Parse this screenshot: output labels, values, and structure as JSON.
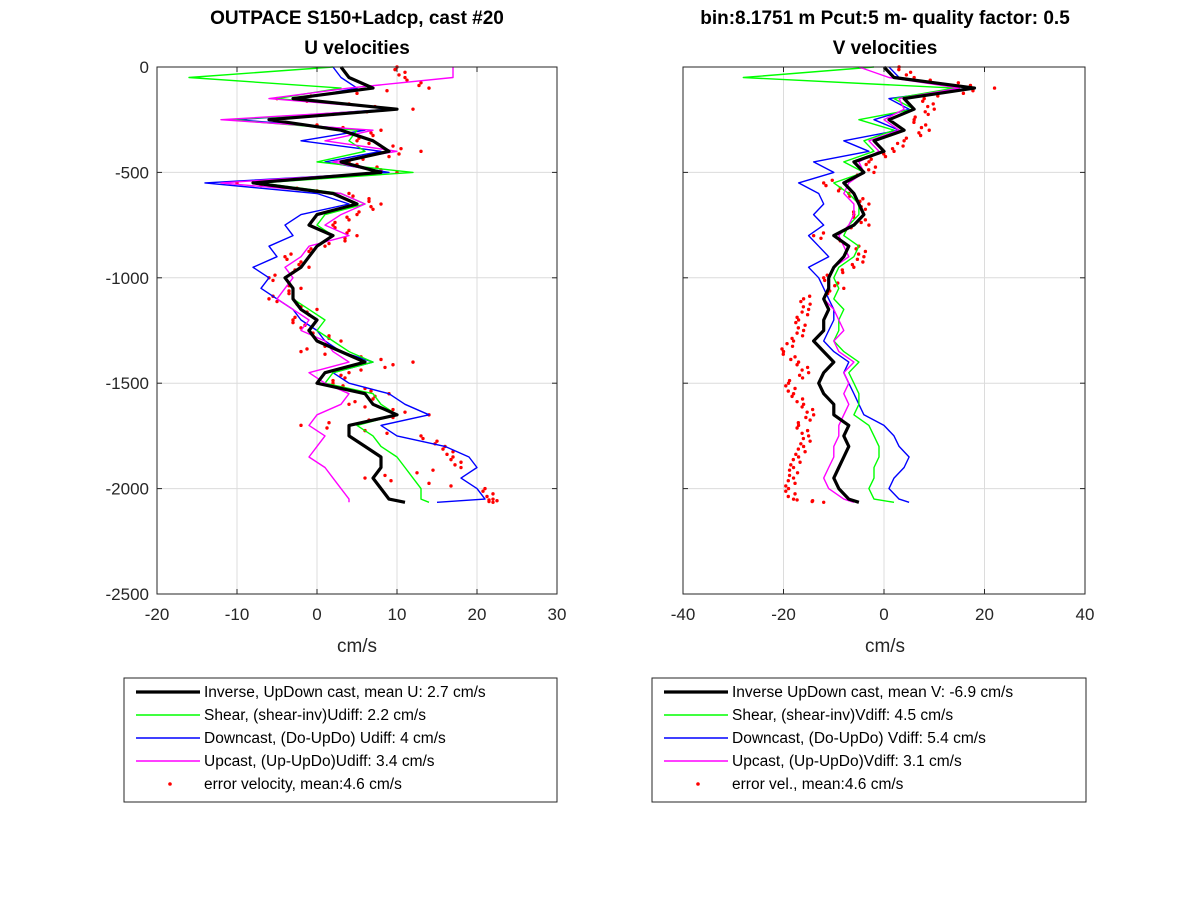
{
  "chart_data": [
    {
      "type": "line",
      "title": "OUTPACE S150+Ladcp, cast #20",
      "subtitle": "U velocities",
      "xlabel": "cm/s",
      "ylabel": "",
      "xlim": [
        -20,
        30
      ],
      "ylim": [
        -2500,
        0
      ],
      "xticks": [
        "-20",
        "-10",
        "0",
        "10",
        "20",
        "30"
      ],
      "yticks": [
        "0",
        "-500",
        "-1000",
        "-1500",
        "-2000",
        "-2500"
      ],
      "xtick_values": [
        -20,
        -10,
        0,
        10,
        20,
        30
      ],
      "ytick_values": [
        0,
        -500,
        -1000,
        -1500,
        -2000,
        -2500
      ],
      "grid": true,
      "legend_position": "below",
      "legend": [
        "Inverse, UpDown cast, mean U:  2.7 cm/s",
        "Shear, (shear-inv)Udiff:  2.2 cm/s",
        "Downcast, (Do-UpDo) Udiff:  4 cm/s",
        "Upcast, (Up-UpDo)Udiff:  3.4 cm/s",
        "error velocity, mean:4.6 cm/s"
      ],
      "depth": [
        0,
        -50,
        -100,
        -150,
        -200,
        -250,
        -300,
        -350,
        -400,
        -450,
        -500,
        -550,
        -600,
        -650,
        -700,
        -750,
        -800,
        -850,
        -900,
        -950,
        -1000,
        -1050,
        -1100,
        -1150,
        -1200,
        -1250,
        -1300,
        -1350,
        -1400,
        -1450,
        -1500,
        -1550,
        -1600,
        -1650,
        -1700,
        -1750,
        -1800,
        -1850,
        -1900,
        -1950,
        -2000,
        -2050,
        -2065
      ],
      "series": [
        {
          "key": "inverse",
          "color": "#000000",
          "width": 3.2,
          "style": "line",
          "values": [
            3,
            4,
            7,
            -3,
            10,
            -6,
            3,
            7,
            9,
            3,
            8,
            -8,
            2,
            5,
            0,
            -1,
            2,
            0,
            -1,
            -2,
            -4,
            -3,
            -3,
            -2,
            0,
            -1,
            0,
            3,
            6,
            1,
            0,
            6,
            7,
            10,
            4,
            4,
            6,
            8,
            8,
            7,
            8,
            9,
            11
          ]
        },
        {
          "key": "shear",
          "color": "#00ff00",
          "width": 1.4,
          "style": "line",
          "values": [
            2,
            -16,
            3,
            -5,
            10,
            -11,
            5,
            4,
            6,
            0,
            12,
            -7,
            3,
            6,
            1,
            0,
            2,
            0,
            -1,
            -2,
            -4,
            -3,
            -3,
            -1,
            1,
            0,
            2,
            4,
            7,
            2,
            1,
            7,
            8,
            10,
            5,
            7,
            8,
            10,
            11,
            12,
            13,
            13,
            14
          ]
        },
        {
          "key": "downcast",
          "color": "#0000ff",
          "width": 1.4,
          "style": "line",
          "values": [
            2,
            3,
            5,
            -2,
            9,
            -10,
            6,
            -2,
            8,
            1,
            9,
            -14,
            0,
            4,
            -2,
            -4,
            -3,
            -6,
            -5,
            -8,
            -6,
            -7,
            -5,
            -3,
            -2,
            0,
            1,
            3,
            7,
            2,
            4,
            9,
            11,
            14,
            8,
            10,
            16,
            19,
            20,
            18,
            20,
            21,
            15
          ]
        },
        {
          "key": "upcast",
          "color": "#ff00ff",
          "width": 1.4,
          "style": "line",
          "values": [
            17,
            17,
            4,
            -6,
            10,
            -12,
            7,
            1,
            10,
            2,
            8,
            -12,
            3,
            6,
            3,
            1,
            4,
            -1,
            -2,
            -4,
            -3,
            -4,
            -5,
            -3,
            -1,
            -2,
            1,
            2,
            4,
            -1,
            1,
            4,
            3,
            0,
            -1,
            1,
            0,
            -1,
            1,
            2,
            3,
            4,
            4
          ]
        },
        {
          "key": "error",
          "color": "#ff0000",
          "style": "points",
          "values": [
            10,
            11,
            14,
            -5,
            12,
            -9,
            8,
            5,
            13,
            4,
            10,
            -10,
            4,
            8,
            5,
            2,
            5,
            1,
            -4,
            -1,
            -6,
            -2,
            -6,
            0,
            -3,
            -1,
            3,
            -2,
            12,
            4,
            2,
            9,
            4,
            14,
            -2,
            13,
            16,
            17,
            18,
            6,
            21,
            22,
            22
          ]
        }
      ]
    },
    {
      "type": "line",
      "title": "bin:8.1751 m  Pcut:5 m- quality factor:  0.5",
      "subtitle": "V velocities",
      "xlabel": "cm/s",
      "ylabel": "",
      "xlim": [
        -40,
        40
      ],
      "ylim": [
        -2500,
        0
      ],
      "xticks": [
        "-40",
        "-20",
        "0",
        "20",
        "40"
      ],
      "xtick_values": [
        -40,
        -20,
        0,
        20,
        40
      ],
      "ytick_values": [
        0,
        -500,
        -1000,
        -1500,
        -2000,
        -2500
      ],
      "grid": true,
      "legend_position": "below",
      "legend": [
        "Inverse UpDown cast, mean V:  -6.9 cm/s",
        "Shear, (shear-inv)Vdiff:  4.5 cm/s",
        "Downcast, (Do-UpDo) Vdiff:  5.4 cm/s",
        "Upcast, (Up-UpDo)Vdiff:  3.1 cm/s",
        "error vel., mean:4.6 cm/s"
      ],
      "depth": [
        0,
        -50,
        -100,
        -150,
        -200,
        -250,
        -300,
        -350,
        -400,
        -450,
        -500,
        -550,
        -600,
        -650,
        -700,
        -750,
        -800,
        -850,
        -900,
        -950,
        -1000,
        -1050,
        -1100,
        -1150,
        -1200,
        -1250,
        -1300,
        -1350,
        -1400,
        -1450,
        -1500,
        -1550,
        -1600,
        -1650,
        -1700,
        -1750,
        -1800,
        -1850,
        -1900,
        -1950,
        -2000,
        -2050,
        -2065
      ],
      "series": [
        {
          "key": "inverse",
          "color": "#000000",
          "width": 3.2,
          "style": "line",
          "values": [
            0,
            2,
            18,
            4,
            6,
            1,
            4,
            -2,
            0,
            -6,
            -4,
            -8,
            -6,
            -5,
            -4,
            -6,
            -10,
            -7,
            -8,
            -10,
            -11,
            -11,
            -12,
            -11,
            -12,
            -12,
            -14,
            -12,
            -10,
            -12,
            -13,
            -12,
            -10,
            -10,
            -7,
            -8,
            -7,
            -8,
            -9,
            -10,
            -9,
            -7,
            -5
          ]
        },
        {
          "key": "shear",
          "color": "#00ff00",
          "width": 1.4,
          "style": "line",
          "values": [
            -2,
            -28,
            14,
            2,
            6,
            -5,
            2,
            -4,
            -2,
            -8,
            -4,
            -10,
            -7,
            -5,
            -5,
            -7,
            -8,
            -5,
            -6,
            -9,
            -10,
            -9,
            -10,
            -8,
            -9,
            -9,
            -10,
            -8,
            -5,
            -7,
            -6,
            -5,
            -5,
            -6,
            -3,
            -2,
            -1,
            -1,
            -2,
            -2,
            -3,
            -2,
            2
          ]
        },
        {
          "key": "downcast",
          "color": "#0000ff",
          "width": 1.4,
          "style": "line",
          "values": [
            1,
            3,
            17,
            1,
            5,
            -2,
            3,
            -8,
            -3,
            -14,
            -10,
            -17,
            -13,
            -12,
            -14,
            -12,
            -15,
            -13,
            -11,
            -15,
            -13,
            -12,
            -11,
            -10,
            -10,
            -11,
            -12,
            -10,
            -7,
            -8,
            -7,
            -6,
            -5,
            -4,
            0,
            2,
            3,
            5,
            4,
            2,
            1,
            3,
            5
          ]
        },
        {
          "key": "upcast",
          "color": "#ff00ff",
          "width": 1.4,
          "style": "line",
          "values": [
            -5,
            1,
            15,
            3,
            4,
            0,
            3,
            -3,
            -1,
            -5,
            -4,
            -7,
            -8,
            -6,
            -6,
            -7,
            -9,
            -8,
            -7,
            -10,
            -11,
            -11,
            -12,
            -10,
            -9,
            -8,
            -10,
            -9,
            -6,
            -8,
            -7,
            -8,
            -7,
            -8,
            -9,
            -9,
            -10,
            -10,
            -11,
            -12,
            -11,
            -8,
            -6
          ]
        },
        {
          "key": "error",
          "color": "#ff0000",
          "style": "points",
          "values": [
            3,
            6,
            22,
            8,
            10,
            6,
            9,
            4,
            2,
            -3,
            -2,
            -12,
            -7,
            -3,
            -6,
            -3,
            -14,
            -5,
            -4,
            -6,
            -12,
            -8,
            -16,
            -15,
            -17,
            -16,
            -18,
            -20,
            -17,
            -15,
            -19,
            -18,
            -16,
            -14,
            -17,
            -15,
            -16,
            -17,
            -18,
            -18,
            -19,
            -18,
            -12
          ]
        }
      ]
    }
  ]
}
